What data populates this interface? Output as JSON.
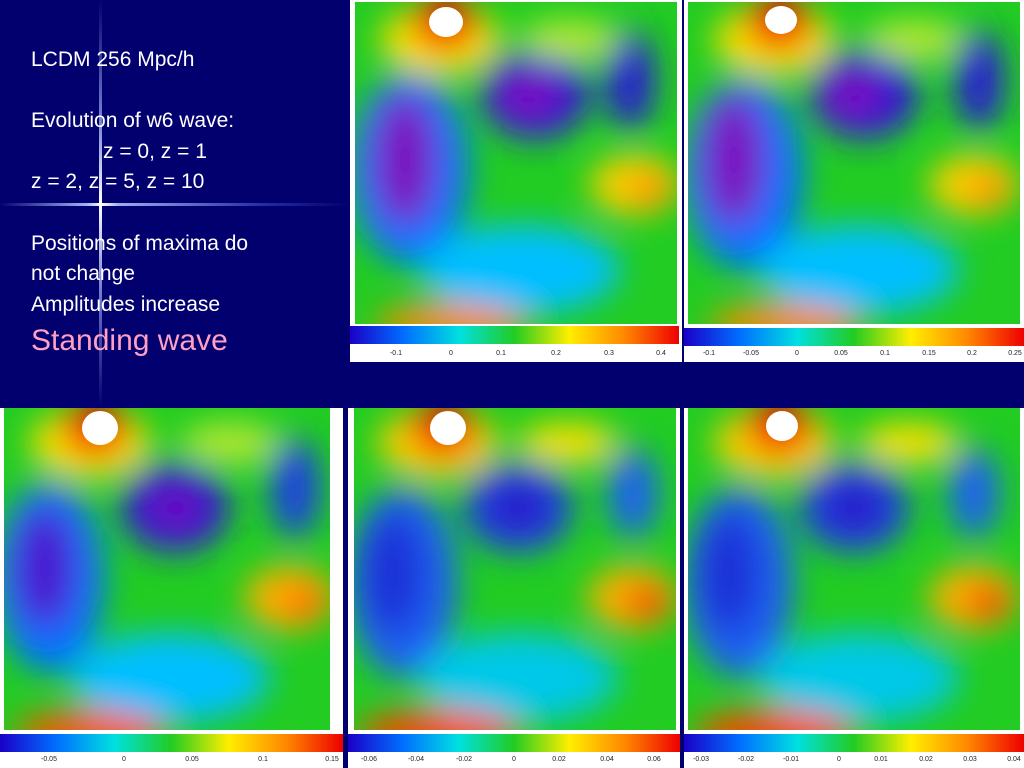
{
  "text": {
    "line1": "LCDM 256 Mpc/h",
    "line2": "Evolution of w6 wave:",
    "line3": "z = 0, z = 1",
    "line4": "z = 2, z = 5, z = 10",
    "line5": "Positions of maxima do",
    "line6": "not change",
    "line7": "Amplitudes increase",
    "line8": "Standing wave"
  },
  "colors": {
    "background": "#02006e",
    "accent_text": "#ff9fc3",
    "colormap": [
      "#1a00c8",
      "#0070ff",
      "#00e0e0",
      "#22cc22",
      "#ffee00",
      "#ff8800",
      "#ee0000"
    ]
  },
  "panels": [
    {
      "ticks": [
        "-0.1",
        "0",
        "0.1",
        "0.2",
        "0.3",
        "0.4"
      ]
    },
    {
      "ticks": [
        "-0.1",
        "-0.05",
        "0",
        "0.05",
        "0.1",
        "0.15",
        "0.2",
        "0.25"
      ]
    },
    {
      "ticks": [
        "-0.05",
        "0",
        "0.05",
        "0.1",
        "0.15"
      ]
    },
    {
      "ticks": [
        "-0.06",
        "-0.04",
        "-0.02",
        "0",
        "0.02",
        "0.04",
        "0.06"
      ]
    },
    {
      "ticks": [
        "-0.03",
        "-0.02",
        "-0.01",
        "0",
        "0.01",
        "0.02",
        "0.03",
        "0.04"
      ]
    }
  ]
}
